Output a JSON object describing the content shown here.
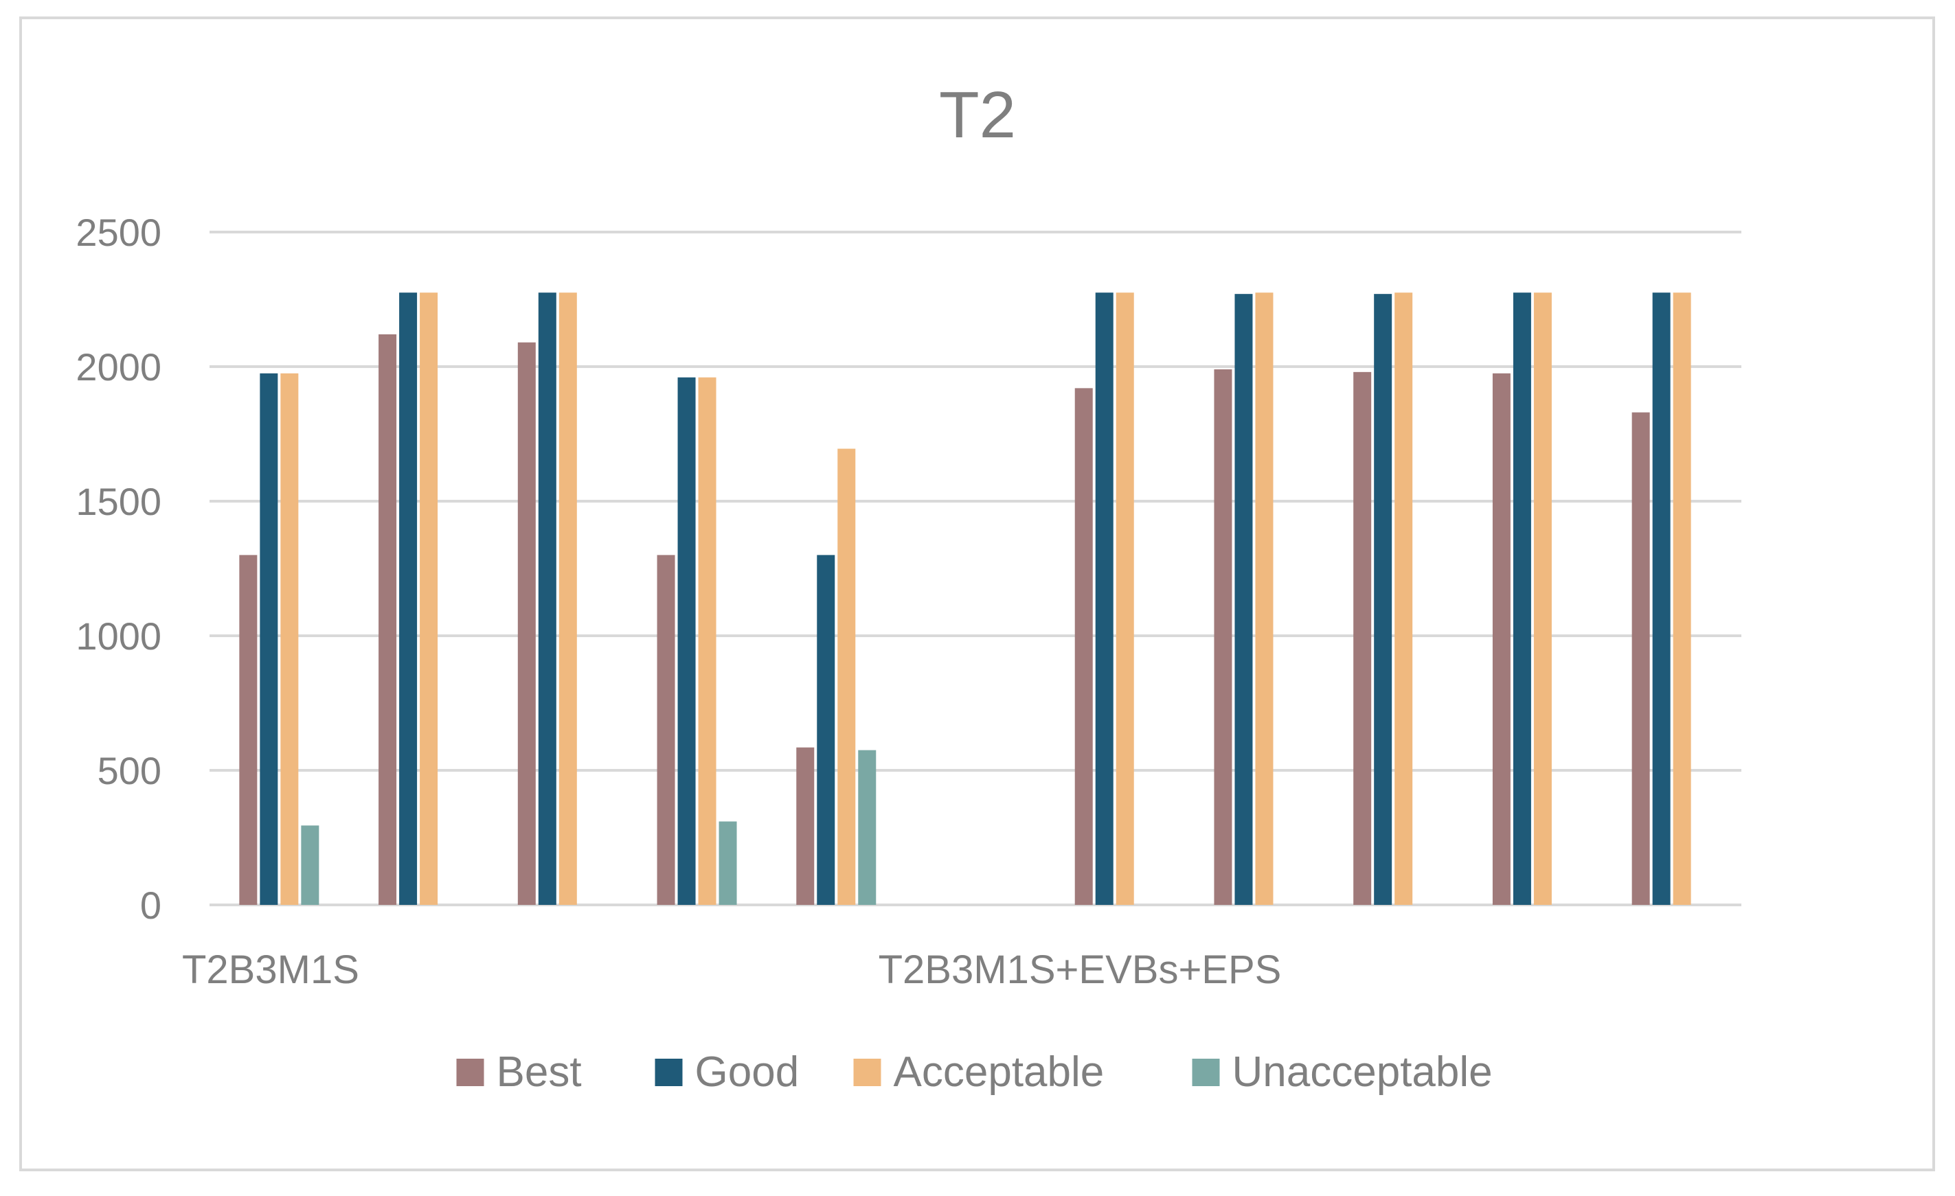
{
  "chart_data": {
    "type": "bar",
    "title": "T2",
    "xlabel": "",
    "ylabel": "",
    "ylim": [
      0,
      2500
    ],
    "yticks": [
      0,
      500,
      1000,
      1500,
      2000,
      2500
    ],
    "grid": true,
    "legend_position": "bottom",
    "category_labels": [
      {
        "label": "T2B3M1S",
        "position_index": 0
      },
      {
        "label": "T2B3M1S+EVBs+EPS",
        "position_index": 5
      }
    ],
    "groups": 11,
    "series": [
      {
        "name": "Best",
        "color": "#a07a7a",
        "values": [
          1300,
          2120,
          2090,
          1300,
          585,
          null,
          1920,
          1990,
          1980,
          1975,
          1830
        ]
      },
      {
        "name": "Good",
        "color": "#1f5a78",
        "values": [
          1975,
          2275,
          2275,
          1960,
          1300,
          null,
          2275,
          2270,
          2270,
          2275,
          2275
        ]
      },
      {
        "name": "Acceptable",
        "color": "#f0b97f",
        "values": [
          1975,
          2275,
          2275,
          1960,
          1695,
          null,
          2275,
          2275,
          2275,
          2275,
          2275
        ]
      },
      {
        "name": "Unacceptable",
        "color": "#7aa8a4",
        "values": [
          295,
          null,
          null,
          310,
          575,
          null,
          null,
          null,
          null,
          null,
          null
        ]
      }
    ]
  }
}
